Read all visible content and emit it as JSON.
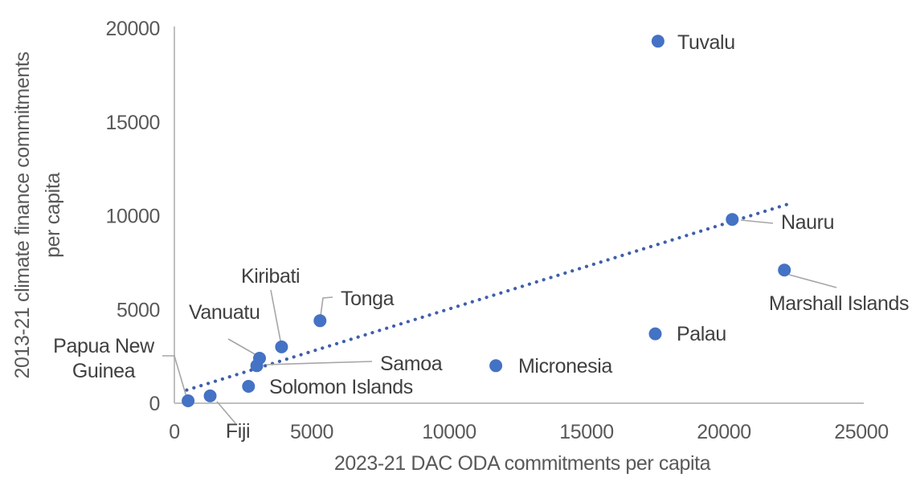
{
  "chart_data": {
    "type": "scatter",
    "title": "",
    "xlabel": "2023-21 DAC ODA commitments per capita",
    "ylabel_lines": [
      "2013-21 climate finance commitments",
      "per capita"
    ],
    "xlim": [
      0,
      25000
    ],
    "ylim": [
      0,
      20000
    ],
    "x_ticks": [
      0,
      5000,
      10000,
      15000,
      20000,
      25000
    ],
    "y_ticks": [
      0,
      5000,
      10000,
      15000,
      20000
    ],
    "grid": false,
    "legend": "none",
    "points": [
      {
        "name": "Papua New Guinea",
        "x": 500,
        "y": 130
      },
      {
        "name": "Fiji",
        "x": 1300,
        "y": 390
      },
      {
        "name": "Solomon Islands",
        "x": 2700,
        "y": 900
      },
      {
        "name": "Samoa",
        "x": 3000,
        "y": 2000
      },
      {
        "name": "Vanuatu",
        "x": 3100,
        "y": 2400
      },
      {
        "name": "Kiribati",
        "x": 3900,
        "y": 3000
      },
      {
        "name": "Tonga",
        "x": 5300,
        "y": 4400
      },
      {
        "name": "Micronesia",
        "x": 11700,
        "y": 2000
      },
      {
        "name": "Palau",
        "x": 17500,
        "y": 3700
      },
      {
        "name": "Tuvalu",
        "x": 17600,
        "y": 19300
      },
      {
        "name": "Nauru",
        "x": 20300,
        "y": 9800
      },
      {
        "name": "Marshall Islands",
        "x": 22200,
        "y": 7100
      }
    ],
    "trendline": {
      "style": "dotted",
      "x1": 450,
      "y1": 700,
      "x2": 22300,
      "y2": 10600
    },
    "colors": {
      "point": "#4472C4",
      "trendline": "#3F5FAA",
      "axis_line": "#BFBFBF",
      "leader_line": "#A6A6A6",
      "tick_text": "#595959",
      "label_text": "#404040"
    }
  }
}
